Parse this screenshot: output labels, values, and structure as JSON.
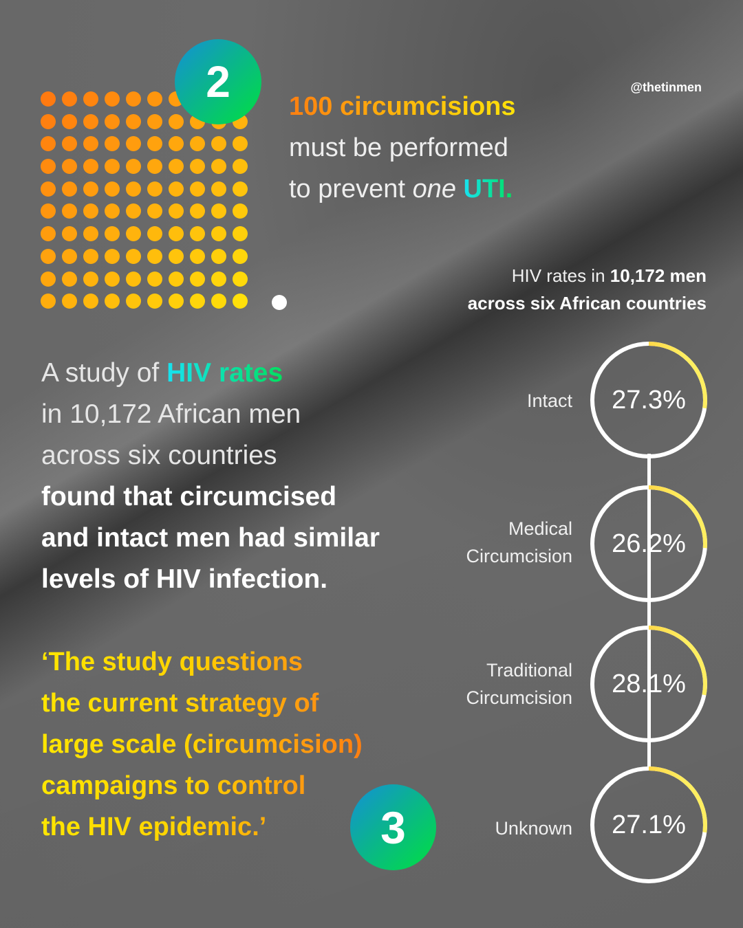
{
  "handle": "@thetinmen",
  "badges": {
    "section_2": "2",
    "section_3": "3"
  },
  "uti_stat": {
    "highlight": "100 circumcisions",
    "line2": "must be performed",
    "line3_prefix": "to prevent ",
    "line3_italic": "one",
    "line3_highlight": "UTI."
  },
  "study_text": {
    "line1_prefix": "A study of ",
    "line1_highlight": "HIV rates",
    "line2": "in 10,172 African men",
    "line3": "across six countries",
    "line4": "found that circumcised",
    "line5": "and intact men had similar",
    "line6": "levels of HIV infection."
  },
  "quote": {
    "lines": [
      "‘The study questions",
      "the current strategy of",
      "large scale (circumcision)",
      "campaigns to control",
      "the HIV epidemic.’"
    ]
  },
  "chart_title": {
    "line1_prefix": "HIV rates in ",
    "line1_bold": "10,172 men",
    "line2": "across six African countries"
  },
  "colors": {
    "orange": "#ff7f10",
    "yellow": "#ffe20a",
    "teal": "#18e2f0",
    "green": "#00e040",
    "badge_blue": "#1490d8",
    "background": "#676767"
  },
  "chart_data": [
    {
      "type": "waffle",
      "title": "100 circumcisions must be performed to prevent one UTI.",
      "grid": [
        10,
        10
      ],
      "values": [
        {
          "label": "circumcisions performed",
          "count": 100,
          "color": "#ff9a10"
        },
        {
          "label": "UTI prevented",
          "count": 1,
          "color": "#ffffff"
        }
      ]
    },
    {
      "type": "radial_progress",
      "title": "HIV rates in 10,172 men across six African countries",
      "categories": [
        "Intact",
        "Medical Circumcision",
        "Traditional Circumcision",
        "Unknown"
      ],
      "values": [
        27.3,
        26.2,
        28.1,
        27.1
      ],
      "value_labels": [
        "27.3%",
        "26.2%",
        "28.1%",
        "27.1%"
      ],
      "unit": "%",
      "range": [
        0,
        100
      ]
    }
  ],
  "rings": [
    {
      "label_lines": [
        "Intact"
      ],
      "value": "27.3%",
      "pct": 27.3
    },
    {
      "label_lines": [
        "Medical",
        "Circumcision"
      ],
      "value": "26.2%",
      "pct": 26.2
    },
    {
      "label_lines": [
        "Traditional",
        "Circumcision"
      ],
      "value": "28.1%",
      "pct": 28.1
    },
    {
      "label_lines": [
        "Unknown"
      ],
      "value": "27.1%",
      "pct": 27.1
    }
  ]
}
